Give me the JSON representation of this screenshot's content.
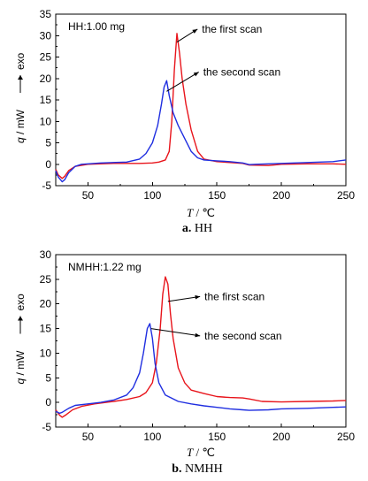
{
  "chart_data": [
    {
      "type": "line",
      "annotation_title": "HH:1.00 mg",
      "xlabel_var": "T",
      "xlabel_unit": "/ ℃",
      "ylabel_var": "q",
      "ylabel_unit": "/ mW",
      "ylabel_dir": "exo",
      "xlim": [
        25,
        250
      ],
      "ylim": [
        -5,
        35
      ],
      "xticks": [
        50,
        100,
        150,
        200,
        250
      ],
      "yticks": [
        -5,
        0,
        5,
        10,
        15,
        20,
        25,
        30,
        35
      ],
      "caption_letter": "a.",
      "caption_text": "HH",
      "series": [
        {
          "name": "the first scan",
          "color": "#e8141b",
          "points": [
            [
              25,
              -1.2
            ],
            [
              27,
              -2.5
            ],
            [
              30,
              -3.3
            ],
            [
              32,
              -2.8
            ],
            [
              35,
              -1.5
            ],
            [
              40,
              -0.5
            ],
            [
              50,
              0.0
            ],
            [
              70,
              0.2
            ],
            [
              90,
              0.2
            ],
            [
              100,
              0.3
            ],
            [
              105,
              0.5
            ],
            [
              110,
              1.0
            ],
            [
              113,
              3
            ],
            [
              115,
              10
            ],
            [
              117,
              22
            ],
            [
              119,
              30.5
            ],
            [
              121,
              26
            ],
            [
              123,
              20
            ],
            [
              126,
              14
            ],
            [
              130,
              8
            ],
            [
              135,
              3
            ],
            [
              140,
              1.2
            ],
            [
              150,
              0.6
            ],
            [
              160,
              0.4
            ],
            [
              170,
              0.2
            ],
            [
              175,
              -0.2
            ],
            [
              190,
              -0.3
            ],
            [
              200,
              0.0
            ],
            [
              220,
              0.1
            ],
            [
              240,
              0.1
            ],
            [
              250,
              0.0
            ]
          ]
        },
        {
          "name": "the second scan",
          "color": "#1f2ee0",
          "points": [
            [
              25,
              -1.5
            ],
            [
              27,
              -3.0
            ],
            [
              30,
              -4.1
            ],
            [
              32,
              -3.6
            ],
            [
              35,
              -2.0
            ],
            [
              40,
              -0.5
            ],
            [
              45,
              0.0
            ],
            [
              60,
              0.3
            ],
            [
              80,
              0.5
            ],
            [
              90,
              1.2
            ],
            [
              95,
              2.5
            ],
            [
              100,
              5
            ],
            [
              104,
              9
            ],
            [
              107,
              14
            ],
            [
              109,
              18
            ],
            [
              111,
              19.5
            ],
            [
              113,
              16
            ],
            [
              116,
              12
            ],
            [
              120,
              9
            ],
            [
              125,
              6
            ],
            [
              130,
              3
            ],
            [
              135,
              1.5
            ],
            [
              140,
              1.0
            ],
            [
              150,
              0.8
            ],
            [
              160,
              0.6
            ],
            [
              170,
              0.3
            ],
            [
              175,
              -0.1
            ],
            [
              180,
              0.0
            ],
            [
              200,
              0.2
            ],
            [
              220,
              0.4
            ],
            [
              240,
              0.6
            ],
            [
              250,
              1.0
            ]
          ]
        }
      ],
      "series_labels": [
        {
          "text": "the first scan",
          "x_anchor": 119,
          "y_anchor": 28.5,
          "x_text": 137,
          "y_text": 31.5
        },
        {
          "text": "the second scan",
          "x_anchor": 111,
          "y_anchor": 17.0,
          "x_text": 138,
          "y_text": 21.5
        }
      ]
    },
    {
      "type": "line",
      "annotation_title": "NMHH:1.22 mg",
      "xlabel_var": "T",
      "xlabel_unit": "/ ℃",
      "ylabel_var": "q",
      "ylabel_unit": "/ mW",
      "ylabel_dir": "exo",
      "xlim": [
        25,
        250
      ],
      "ylim": [
        -5,
        30
      ],
      "xticks": [
        50,
        100,
        150,
        200,
        250
      ],
      "yticks": [
        -5,
        0,
        5,
        10,
        15,
        20,
        25,
        30
      ],
      "caption_letter": "b.",
      "caption_text": "NMHH",
      "series": [
        {
          "name": "the first scan",
          "color": "#e8141b",
          "points": [
            [
              25,
              -1.5
            ],
            [
              28,
              -2.6
            ],
            [
              30,
              -3.0
            ],
            [
              33,
              -2.5
            ],
            [
              38,
              -1.5
            ],
            [
              45,
              -0.8
            ],
            [
              55,
              -0.3
            ],
            [
              70,
              0.2
            ],
            [
              80,
              0.6
            ],
            [
              90,
              1.2
            ],
            [
              95,
              2.0
            ],
            [
              100,
              4
            ],
            [
              103,
              8
            ],
            [
              106,
              15
            ],
            [
              108,
              22
            ],
            [
              110,
              25.5
            ],
            [
              112,
              24
            ],
            [
              114,
              18
            ],
            [
              116,
              13
            ],
            [
              120,
              7
            ],
            [
              125,
              4
            ],
            [
              130,
              2.5
            ],
            [
              140,
              1.8
            ],
            [
              150,
              1.2
            ],
            [
              160,
              1.0
            ],
            [
              170,
              0.9
            ],
            [
              175,
              0.7
            ],
            [
              185,
              0.2
            ],
            [
              200,
              0.1
            ],
            [
              220,
              0.2
            ],
            [
              240,
              0.3
            ],
            [
              250,
              0.4
            ]
          ]
        },
        {
          "name": "the second scan",
          "color": "#1f2ee0",
          "points": [
            [
              25,
              -1.8
            ],
            [
              28,
              -2.2
            ],
            [
              30,
              -2.0
            ],
            [
              35,
              -1.2
            ],
            [
              40,
              -0.6
            ],
            [
              50,
              -0.3
            ],
            [
              60,
              0.0
            ],
            [
              70,
              0.5
            ],
            [
              80,
              1.5
            ],
            [
              85,
              3
            ],
            [
              90,
              6
            ],
            [
              93,
              10
            ],
            [
              96,
              15
            ],
            [
              98,
              16
            ],
            [
              100,
              13
            ],
            [
              102,
              8
            ],
            [
              105,
              4
            ],
            [
              110,
              1.5
            ],
            [
              120,
              0.2
            ],
            [
              130,
              -0.3
            ],
            [
              140,
              -0.7
            ],
            [
              150,
              -1.0
            ],
            [
              160,
              -1.3
            ],
            [
              170,
              -1.5
            ],
            [
              175,
              -1.6
            ],
            [
              190,
              -1.5
            ],
            [
              200,
              -1.3
            ],
            [
              220,
              -1.2
            ],
            [
              240,
              -1.0
            ],
            [
              250,
              -0.9
            ]
          ]
        }
      ],
      "series_labels": [
        {
          "text": "the first scan",
          "x_anchor": 112,
          "y_anchor": 20.5,
          "x_text": 139,
          "y_text": 21.5
        },
        {
          "text": "the second scan",
          "x_anchor": 99,
          "y_anchor": 15.0,
          "x_text": 139,
          "y_text": 13.5
        }
      ]
    }
  ]
}
